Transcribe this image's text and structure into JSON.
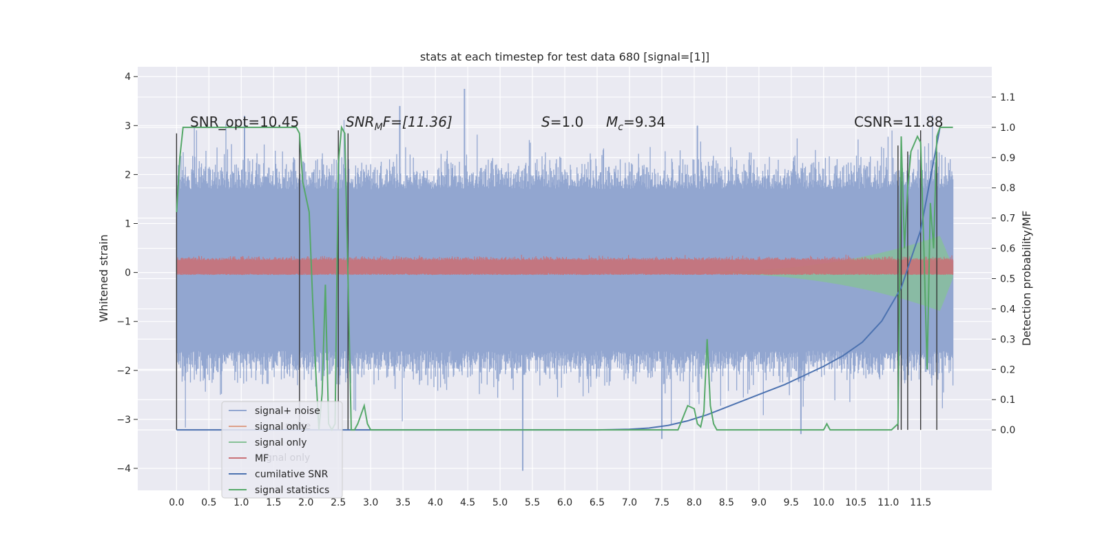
{
  "chart_data": {
    "type": "line",
    "title": "stats at each timestep for test data 680 [signal=[1]]",
    "ylabel_left": "Whitened strain",
    "ylabel_right": "Detection probability/MF",
    "xlim": [
      -0.6,
      12.6
    ],
    "ylim_left": [
      -4.45,
      4.2
    ],
    "ylim_right": [
      -0.2,
      1.2
    ],
    "x_ticks": [
      "0.0",
      "0.5",
      "1.0",
      "1.5",
      "2.0",
      "2.5",
      "3.0",
      "3.5",
      "4.0",
      "4.5",
      "5.0",
      "5.5",
      "6.0",
      "6.5",
      "7.0",
      "7.5",
      "8.0",
      "8.5",
      "9.0",
      "9.5",
      "10.0",
      "10.5",
      "11.0",
      "11.5"
    ],
    "y_ticks_left": [
      "−4",
      "−3",
      "−2",
      "−1",
      "0",
      "1",
      "2",
      "3",
      "4"
    ],
    "y_ticks_right": [
      "0.0",
      "0.1",
      "0.2",
      "0.3",
      "0.4",
      "0.5",
      "0.6",
      "0.7",
      "0.8",
      "0.9",
      "1.0",
      "1.1"
    ],
    "annotations": {
      "snr_opt": "SNR_opt=10.45",
      "snr_mf_base": "SNR",
      "snr_mf_sub": "M",
      "snr_mf_rest": "F=[11.36]",
      "s_italic": "S",
      "s_value": "=1.0",
      "mc_base": "M",
      "mc_sub": "c",
      "mc_value": "=9.34",
      "csnr": "CSNR=11.88"
    },
    "legend_position": "lower left",
    "legend": [
      {
        "label": "signal+ noise",
        "color": "#92a6d0"
      },
      {
        "label": "signal only",
        "color": "#dd9f88"
      },
      {
        "label": "signal only",
        "color": "#86c196"
      },
      {
        "label": "MF",
        "color": "#c97177"
      },
      {
        "label": "cumilative SNR",
        "color": "#4c72b0"
      },
      {
        "label": "signal statistics",
        "color": "#55a868"
      }
    ],
    "legend_ghost_text": [
      "noise",
      "gnal only"
    ],
    "series": [
      {
        "name": "signal+ noise",
        "kind": "noise_band",
        "color": "#92a6d0",
        "x_range": [
          0.0,
          12.0
        ],
        "typical_envelope": [
          -1.6,
          1.7
        ],
        "extreme_max": 3.75,
        "extreme_min": -4.05
      },
      {
        "name": "MF",
        "kind": "noise_band",
        "color": "#c97177",
        "x_range": [
          0.0,
          12.0
        ],
        "typical_envelope": [
          -0.05,
          0.3
        ]
      },
      {
        "name": "signal only",
        "kind": "chirp_envelope",
        "color": "#86c196",
        "x_range": [
          7.5,
          12.0
        ],
        "amplitude_at_end": 0.75,
        "peak_x": 11.8
      },
      {
        "name": "cumilative SNR",
        "color": "#4c72b0",
        "axis": "right",
        "x": [
          0.0,
          6.5,
          7.0,
          7.3,
          7.6,
          7.9,
          8.2,
          8.5,
          8.8,
          9.1,
          9.4,
          9.7,
          10.0,
          10.3,
          10.6,
          10.9,
          11.2,
          11.5,
          11.8
        ],
        "y": [
          0.0,
          0.0,
          0.002,
          0.006,
          0.015,
          0.03,
          0.05,
          0.075,
          0.1,
          0.125,
          0.15,
          0.18,
          0.21,
          0.245,
          0.29,
          0.36,
          0.47,
          0.66,
          1.0
        ]
      },
      {
        "name": "signal statistics",
        "color": "#55a868",
        "axis": "right",
        "x": [
          0.0,
          0.05,
          0.1,
          0.2,
          1.85,
          1.9,
          1.95,
          2.05,
          2.1,
          2.15,
          2.2,
          2.25,
          2.3,
          2.35,
          2.4,
          2.45,
          2.5,
          2.55,
          2.6,
          2.65,
          2.7,
          2.75,
          2.8,
          2.9,
          2.95,
          3.0,
          3.05,
          3.1,
          7.75,
          7.9,
          8.0,
          8.05,
          8.1,
          8.15,
          8.2,
          8.25,
          8.3,
          8.35,
          8.4,
          10.0,
          10.05,
          10.1,
          11.0,
          11.05,
          11.1,
          11.15,
          11.2,
          11.25,
          11.3,
          11.35,
          11.45,
          11.5,
          11.55,
          11.6,
          11.65,
          11.7,
          11.75,
          11.8,
          11.85,
          12.0
        ],
        "y": [
          0.72,
          0.9,
          1.0,
          1.0,
          1.0,
          0.98,
          0.82,
          0.72,
          0.45,
          0.2,
          0.0,
          0.12,
          0.48,
          0.02,
          0.0,
          0.02,
          0.88,
          1.0,
          0.98,
          0.5,
          0.0,
          0.0,
          0.02,
          0.08,
          0.02,
          0.0,
          0.0,
          0.0,
          0.0,
          0.08,
          0.07,
          0.02,
          0.01,
          0.06,
          0.3,
          0.08,
          0.02,
          0.0,
          0.0,
          0.0,
          0.02,
          0.0,
          0.0,
          0.0,
          0.01,
          0.02,
          0.97,
          0.6,
          0.8,
          0.92,
          0.97,
          0.95,
          0.6,
          0.2,
          0.75,
          0.6,
          0.97,
          1.0,
          1.0,
          1.0
        ]
      },
      {
        "name": "detection markers",
        "kind": "vlines",
        "color": "#333333",
        "x": [
          0.0,
          1.9,
          2.5,
          2.65,
          11.15,
          11.2,
          11.3,
          11.5,
          11.75
        ],
        "y_top_right": [
          0.98,
          0.97,
          0.99,
          0.98,
          0.94,
          0.96,
          0.92,
          0.99,
          0.92
        ]
      }
    ]
  }
}
